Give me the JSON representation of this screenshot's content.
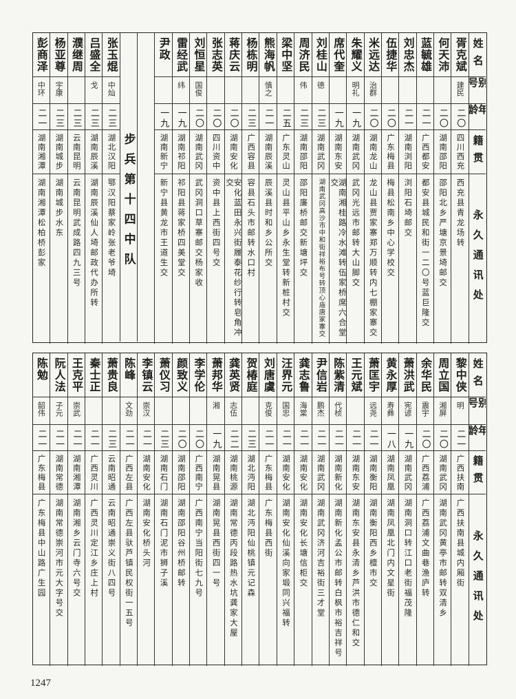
{
  "headers": {
    "name": "姓名",
    "alias": "别号",
    "age": "年龄",
    "origin": "籍贯",
    "address": "永久通讯处"
  },
  "top": {
    "section_label": "步兵第十四中队",
    "entries": [
      {
        "name": "胥克斌",
        "alias": "建民",
        "age": "二〇",
        "origin": "四川西充",
        "address": "西充县青龙场转"
      },
      {
        "name": "何天沛",
        "alias": "",
        "age": "二〇",
        "origin": "湖南邵阳",
        "address": "邵阳北乡严塘京景埼邮交"
      },
      {
        "name": "蓝毓雄",
        "alias": "",
        "age": "二一",
        "origin": "广西都安",
        "address": "都安县城民和街一二〇号蓝巨隆交"
      },
      {
        "name": "刘忠杰",
        "alias": "",
        "age": "二一",
        "origin": "湖南浏阳",
        "address": "浏阳石埼邮交"
      },
      {
        "name": "伍捷华",
        "alias": "",
        "age": "二〇",
        "origin": "广东梅县",
        "address": "梅县松南乡中心学校交"
      },
      {
        "name": "米远达",
        "alias": "治群",
        "age": "二〇",
        "origin": "湖南龙山",
        "address": "龙山县贾家寨郑万顺转内七棚家寨交"
      },
      {
        "name": "朱耀义",
        "alias": "明礼",
        "age": "一九",
        "origin": "湖南武冈",
        "address": "武冈光远市邮转大山脚交"
      },
      {
        "name": "席代奎",
        "alias": "",
        "age": "一九",
        "origin": "湖南东安",
        "address": "湖南湘桂路冷水滩转伍家桥席六合堂交"
      },
      {
        "name": "刘桂山",
        "alias": "德",
        "age": "二三",
        "origin": "湖南武冈",
        "address": "湖南武冈高沙市中和街祥裕布号转顶心庙唐家寨交"
      },
      {
        "name": "周济民",
        "alias": "伟",
        "age": "二三",
        "origin": "湖南邵阳",
        "address": "邵阳廉桥邮交新塘坪交"
      },
      {
        "name": "梁中坚",
        "alias": "",
        "age": "二五",
        "origin": "广东灵山",
        "address": "灵山县平山乡永生堂转新桩村交"
      },
      {
        "name": "熊海帆",
        "alias": "慎之",
        "age": "二一",
        "origin": "湖南辰溪",
        "address": "辰溪县时和乡公所交"
      },
      {
        "name": "杨栋明",
        "alias": "",
        "age": "二三",
        "origin": "广西容县",
        "address": "容县石头市邮转水口村"
      },
      {
        "name": "蒋庆云",
        "alias": "",
        "age": "二〇",
        "origin": "湖南安化",
        "address": "安化蓝田永兴街履泰花纱行转皂角冲交"
      },
      {
        "name": "张志英",
        "alias": "",
        "age": "二〇",
        "origin": "四川资中",
        "address": "资中县上西街四号交"
      },
      {
        "name": "刘恒星",
        "alias": "国俊",
        "age": "二〇",
        "origin": "湖南武冈",
        "address": "武冈洞口草寨邮交杨家收"
      },
      {
        "name": "雷经武",
        "alias": "纬",
        "age": "一九",
        "origin": "湖南祁阳",
        "address": "祁阳县蒋家桥四美堂交"
      },
      {
        "name": "尹政",
        "alias": "",
        "age": "一九",
        "origin": "湖南新宁",
        "address": "新宁县黄龙市王道生交"
      },
      {
        "name": "张玉焜",
        "alias": "中灿",
        "age": "二三",
        "origin": "湖北汉阳",
        "address": "鄂汉阳蔡家岭张老爷埼"
      },
      {
        "name": "吕盛全",
        "alias": "戈",
        "age": "二三",
        "origin": "湖南辰溪",
        "address": "湖南辰溪仙人埼邮政代办所转"
      },
      {
        "name": "濮继周",
        "alias": "",
        "age": "二三",
        "origin": "云南昆明",
        "address": "云南昆明武成路四九三号"
      },
      {
        "name": "杨亚尊",
        "alias": "宇康",
        "age": "二三",
        "origin": "湖南城步",
        "address": "湖南城步水东"
      },
      {
        "name": "彭商泽",
        "alias": "中环",
        "age": "二一",
        "origin": "湖南湘潭",
        "address": "湖南湘潭松柏桥彭家"
      }
    ]
  },
  "bottom": {
    "entries": [
      {
        "name": "黎中侠",
        "alias": "明",
        "age": "二一",
        "origin": "广西扶南",
        "address": "广西扶南县城内厢街"
      },
      {
        "name": "周立国",
        "alias": "湘屏",
        "age": "二〇",
        "origin": "湖南武冈",
        "address": "湖南武冈黄亭市邮转双清乡"
      },
      {
        "name": "余华民",
        "alias": "震宇",
        "age": "二〇",
        "origin": "广西荔浦",
        "address": "广西荔浦文曲巷渔庐转"
      },
      {
        "name": "萧洪武",
        "alias": "宪谚",
        "age": "一九",
        "origin": "湖南武冈",
        "address": "湖南洞口转江口老街福茂隆"
      },
      {
        "name": "黄永厚",
        "alias": "寿彝",
        "age": "一八",
        "origin": "湖南凤凰",
        "address": "湖南凤凰北门内文星街"
      },
      {
        "name": "萧匡宇",
        "alias": "远尧",
        "age": "二一",
        "origin": "湖南衡阳",
        "address": "湖南衡阳西乡檀市交"
      },
      {
        "name": "王元斌",
        "alias": "",
        "age": "二一",
        "origin": "湖南东安",
        "address": "湖南东安县永清乡芦洪市德仁和交"
      },
      {
        "name": "陈紫清",
        "alias": "代桢",
        "age": "二一",
        "origin": "湖南新化",
        "address": "湖南新化孟公市邮转白枫市裕吉祥号"
      },
      {
        "name": "尹信岩",
        "alias": "鹏杰",
        "age": "二一",
        "origin": "湖南武冈",
        "address": "湖南武冈济河吉裕街三才堂"
      },
      {
        "name": "龚志鲁",
        "alias": "海棠",
        "age": "二一",
        "origin": "湖南安化",
        "address": "湖南安化长塘信柜交"
      },
      {
        "name": "汪界元",
        "alias": "国忠",
        "age": "二一",
        "origin": "湖南安化",
        "address": "湖南安化仙溪向家塅同兴福转"
      },
      {
        "name": "刘唐虞",
        "alias": "克俊",
        "age": "二一",
        "origin": "广东梅县",
        "address": "广东梅县西街"
      },
      {
        "name": "贺椿庭",
        "alias": "",
        "age": "二三",
        "origin": "湖北沔阳",
        "address": "湖北沔阳仙桃镇元记森"
      },
      {
        "name": "龚英贤",
        "alias": "志伍",
        "age": "二二",
        "origin": "湖南桃源",
        "address": "湖南常德丙段路热水坑龚家大屋"
      },
      {
        "name": "萧邦华",
        "alias": "湘",
        "age": "一九",
        "origin": "湖南晃县",
        "address": "湖南晃县西街四一号"
      },
      {
        "name": "李学伦",
        "alias": "",
        "age": "二〇",
        "origin": "广西南宁",
        "address": "广西南宁当阳街七九号"
      },
      {
        "name": "颜致义",
        "alias": "",
        "age": "二〇",
        "origin": "湖南邵阳",
        "address": "湖南邵阳谷州桥邮转"
      },
      {
        "name": "萧仪习",
        "alias": "",
        "age": "二三",
        "origin": "湖南石门",
        "address": "湖南石门泥市狮子溪"
      },
      {
        "name": "李镇云",
        "alias": "崇汉",
        "age": "二一",
        "origin": "湖南安化",
        "address": "湖南安化桥头河"
      },
      {
        "name": "陈峰",
        "alias": "文劲",
        "age": "二一",
        "origin": "广西左县",
        "address": "广西左县驮芦镇民权街一五号"
      },
      {
        "name": "萧贵良",
        "alias": "",
        "age": "二三",
        "origin": "云南昭通",
        "address": "云南昭通崇义街八四号"
      },
      {
        "name": "秦士正",
        "alias": "",
        "age": "二一",
        "origin": "广西灵川",
        "address": "广西灵川定江乡庄上村"
      },
      {
        "name": "王克平",
        "alias": "崇武",
        "age": "二一",
        "origin": "湖南湘潭",
        "address": "湖南湘乡云门寺六号交"
      },
      {
        "name": "阮人法",
        "alias": "子元",
        "age": "二一",
        "origin": "湖南常德",
        "address": "湖南常德崇河市元大字号交"
      },
      {
        "name": "陈勉",
        "alias": "韶伟",
        "age": "二一",
        "origin": "广东梅县",
        "address": "广东梅县中山路广生园"
      }
    ]
  },
  "page_number": "1247"
}
